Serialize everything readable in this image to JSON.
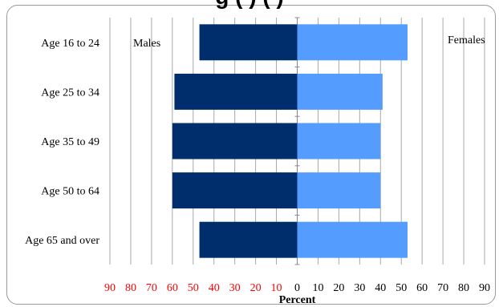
{
  "chart_data": {
    "type": "bar",
    "orientation": "horizontal-diverging",
    "title": "g (ʼ) (ʼ)",
    "xlabel": "Percent",
    "xlim": [
      -90,
      90
    ],
    "x_ticks": [
      -90,
      -80,
      -70,
      -60,
      -50,
      -40,
      -30,
      -20,
      -10,
      0,
      10,
      20,
      30,
      40,
      50,
      60,
      70,
      80,
      90
    ],
    "x_tick_labels": [
      "90",
      "80",
      "70",
      "60",
      "50",
      "40",
      "30",
      "20",
      "10",
      "0",
      "10",
      "20",
      "30",
      "40",
      "50",
      "60",
      "70",
      "80",
      "90"
    ],
    "negative_tick_color": "#ff0000",
    "positive_tick_color": "#000000",
    "grid": true,
    "categories": [
      "Age 16 to 24",
      "Age 25 to 34",
      "Age 35 to 49",
      "Age 50 to 64",
      "Age 65 and over"
    ],
    "series": [
      {
        "name": "Males",
        "side": "left",
        "color": "#002d6b",
        "values": [
          47,
          59,
          60,
          60,
          47
        ]
      },
      {
        "name": "Females",
        "side": "right",
        "color": "#559cff",
        "values": [
          53,
          41,
          40,
          40,
          53
        ]
      }
    ],
    "series_label_placement": [
      "top-left",
      "top-right"
    ]
  }
}
